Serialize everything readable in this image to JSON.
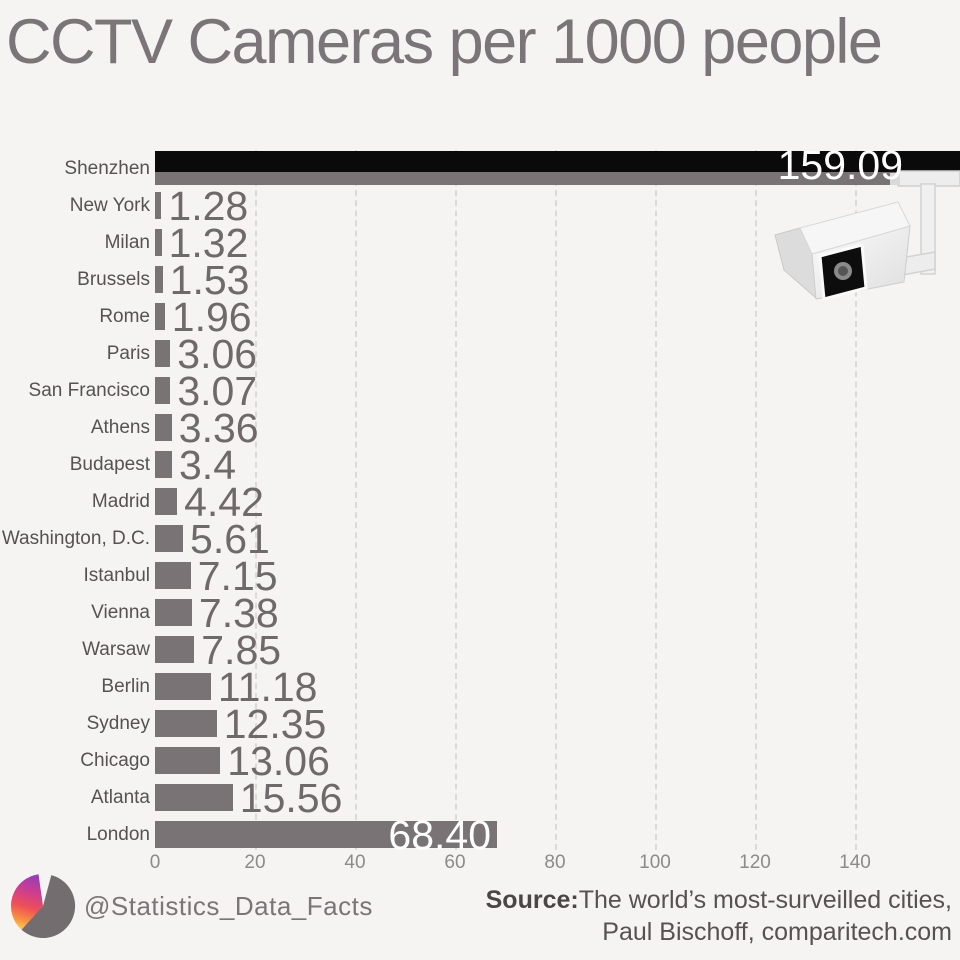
{
  "chart_data": {
    "type": "bar",
    "orientation": "horizontal",
    "title": "CCTV Cameras per 1000 people",
    "categories": [
      "Shenzhen",
      "New York",
      "Milan",
      "Brussels",
      "Rome",
      "Paris",
      "San Francisco",
      "Athens",
      "Budapest",
      "Madrid",
      "Washington, D.C.",
      "Istanbul",
      "Vienna",
      "Warsaw",
      "Berlin",
      "Sydney",
      "Chicago",
      "Atlanta",
      "London"
    ],
    "values": [
      159.09,
      1.28,
      1.32,
      1.53,
      1.96,
      3.06,
      3.07,
      3.36,
      3.4,
      4.42,
      5.61,
      7.15,
      7.38,
      7.85,
      11.18,
      12.35,
      13.06,
      15.56,
      68.4
    ],
    "value_labels": [
      "159.09",
      "1.28",
      "1.32",
      "1.53",
      "1.96",
      "3.06",
      "3.07",
      "3.36",
      "3.4",
      "4.42",
      "5.61",
      "7.15",
      "7.38",
      "7.85",
      "11.18",
      "12.35",
      "13.06",
      "15.56",
      "68.40"
    ],
    "xticks": [
      0,
      20,
      40,
      60,
      80,
      100,
      120,
      140
    ],
    "xlim": [
      0,
      161
    ],
    "grid": "vertical-dashed",
    "overflow_row": 0,
    "inside_label_row": 18,
    "legend": "none",
    "xlabel": "",
    "ylabel": ""
  },
  "footer": {
    "handle": "@Statistics_Data_Facts",
    "source_label": "Source:",
    "source_text": "The world’s most-surveilled cities,",
    "source_line2": "Paul Bischoff, comparitech.com"
  },
  "icons": {
    "logo": "pie-chart-logo",
    "camera": "cctv-camera-illustration"
  },
  "colors": {
    "background": "#f5f4f2",
    "bar": "#7a7375",
    "bar_overflow_black": "#0a0a0a",
    "title_text": "#7b7579",
    "category_text": "#565254",
    "value_text": "#6f696c",
    "value_text_inside": "#ffffff",
    "axis_text": "#8d8a8c",
    "gridline": "#dcdad7",
    "logo_gradient": [
      "#8a3ec0",
      "#cf3e8e",
      "#ee4f57",
      "#f98e43",
      "#fcd34f"
    ]
  }
}
